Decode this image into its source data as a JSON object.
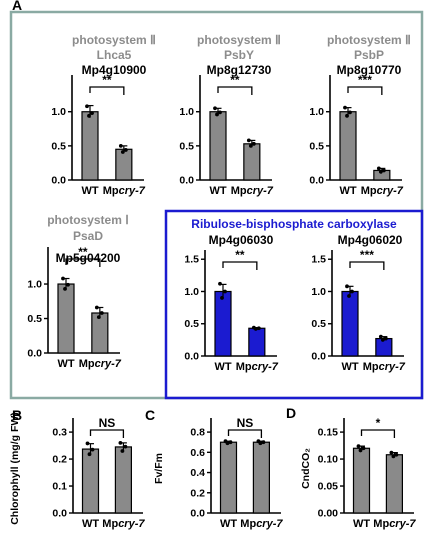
{
  "panel_letters": [
    "A",
    "B",
    "C",
    "D"
  ],
  "colors": {
    "gray_bar": "#8a8a8a",
    "blue_bar": "#1b1bd0",
    "frame_teal": "#8aaaa3",
    "frame_blue": "#1b1bd0",
    "title_gray": "#8c8c8c"
  },
  "rubisco_title": "Ribulose-bisphosphate carboxylase",
  "chart_data": [
    {
      "type": "bar",
      "panel": "A",
      "title_lines": [
        "photosystem Ⅱ",
        "Lhca5",
        "Mp4g10900"
      ],
      "categories": [
        "WT",
        "Mpcry-7"
      ],
      "values": [
        1.0,
        0.45
      ],
      "errors": [
        0.09,
        0.05
      ],
      "points": [
        [
          1.08,
          0.98,
          0.94
        ],
        [
          0.5,
          0.44,
          0.41
        ]
      ],
      "yticks": [
        "0.0",
        "0.5",
        "1.0"
      ],
      "ylim": [
        0,
        1.45
      ],
      "significance": "**",
      "bar_color": "gray"
    },
    {
      "type": "bar",
      "panel": "A",
      "title_lines": [
        "photosystem Ⅱ",
        "PsbY",
        "Mp8g12730"
      ],
      "categories": [
        "WT",
        "Mpcry-7"
      ],
      "values": [
        1.0,
        0.53
      ],
      "errors": [
        0.05,
        0.05
      ],
      "points": [
        [
          1.05,
          0.99,
          0.96
        ],
        [
          0.58,
          0.53,
          0.5
        ]
      ],
      "yticks": [
        "0.0",
        "0.5",
        "1.0"
      ],
      "ylim": [
        0,
        1.45
      ],
      "significance": "**",
      "bar_color": "gray"
    },
    {
      "type": "bar",
      "panel": "A",
      "title_lines": [
        "photosystem Ⅱ",
        "PsbP",
        "Mp8g10770"
      ],
      "categories": [
        "WT",
        "Mpcry-7"
      ],
      "values": [
        1.0,
        0.14
      ],
      "errors": [
        0.06,
        0.03
      ],
      "points": [
        [
          1.06,
          0.99,
          0.94
        ],
        [
          0.17,
          0.14,
          0.12
        ]
      ],
      "yticks": [
        "0.0",
        "0.5",
        "1.0"
      ],
      "ylim": [
        0,
        1.45
      ],
      "significance": "***",
      "bar_color": "gray"
    },
    {
      "type": "bar",
      "panel": "A",
      "title_lines": [
        "photosystem Ⅰ",
        "PsaD",
        "Mp5g04200"
      ],
      "categories": [
        "WT",
        "Mpcry-7"
      ],
      "values": [
        1.0,
        0.58
      ],
      "errors": [
        0.08,
        0.08
      ],
      "points": [
        [
          1.08,
          0.99,
          0.93
        ],
        [
          0.66,
          0.58,
          0.52
        ]
      ],
      "yticks": [
        "0.0",
        "0.5",
        "1.0"
      ],
      "ylim": [
        0,
        1.45
      ],
      "significance": "**",
      "bar_color": "gray"
    },
    {
      "type": "bar",
      "panel": "A",
      "title_lines": [
        "Mp4g06030"
      ],
      "categories": [
        "WT",
        "Mpcry-7"
      ],
      "values": [
        1.0,
        0.43
      ],
      "errors": [
        0.11,
        0.01
      ],
      "points": [
        [
          1.12,
          1.0,
          0.9
        ],
        [
          0.44,
          0.43,
          0.42
        ]
      ],
      "yticks": [
        "0.0",
        "0.5",
        "1.0",
        "1.5"
      ],
      "ylim": [
        0,
        1.55
      ],
      "significance": "**",
      "bar_color": "blue"
    },
    {
      "type": "bar",
      "panel": "A",
      "title_lines": [
        "Mp4g06020"
      ],
      "categories": [
        "WT",
        "Mpcry-7"
      ],
      "values": [
        1.0,
        0.27
      ],
      "errors": [
        0.08,
        0.03
      ],
      "points": [
        [
          1.08,
          1.0,
          0.93
        ],
        [
          0.3,
          0.27,
          0.25
        ]
      ],
      "yticks": [
        "0.0",
        "0.5",
        "1.0",
        "1.5"
      ],
      "ylim": [
        0,
        1.55
      ],
      "significance": "***",
      "bar_color": "blue"
    },
    {
      "type": "bar",
      "panel": "B",
      "title_lines": [],
      "ylabel": "Chlorophyll (mg/g FW)",
      "categories": [
        "WT",
        "Mpcry-7"
      ],
      "values": [
        0.237,
        0.245
      ],
      "errors": [
        0.02,
        0.015
      ],
      "points": [
        [
          0.258,
          0.235,
          0.218
        ],
        [
          0.26,
          0.246,
          0.23
        ]
      ],
      "yticks": [
        "0.0",
        "0.1",
        "0.2",
        "0.3"
      ],
      "ylim": [
        0,
        0.33
      ],
      "significance": "NS",
      "bar_color": "gray"
    },
    {
      "type": "bar",
      "panel": "C",
      "title_lines": [],
      "ylabel": "Fv/Fm",
      "categories": [
        "WT",
        "Mpcry-7"
      ],
      "values": [
        0.7,
        0.7
      ],
      "errors": [
        0.01,
        0.01
      ],
      "points": [
        [
          0.71,
          0.7,
          0.69
        ],
        [
          0.71,
          0.7,
          0.69
        ]
      ],
      "yticks": [
        "0.0",
        "0.2",
        "0.4",
        "0.6",
        "0.8"
      ],
      "ylim": [
        0,
        0.88
      ],
      "significance": "NS",
      "bar_color": "gray"
    },
    {
      "type": "bar",
      "panel": "D",
      "title_lines": [],
      "ylabel": "CndCO₂",
      "categories": [
        "WT",
        "Mpcry-7"
      ],
      "values": [
        0.12,
        0.108
      ],
      "errors": [
        0.004,
        0.004
      ],
      "points": [
        [
          0.124,
          0.12,
          0.116
        ],
        [
          0.112,
          0.108,
          0.105
        ]
      ],
      "yticks": [
        "0.00",
        "0.05",
        "0.10",
        "0.15"
      ],
      "ylim": [
        0,
        0.165
      ],
      "significance": "*",
      "bar_color": "gray"
    }
  ]
}
